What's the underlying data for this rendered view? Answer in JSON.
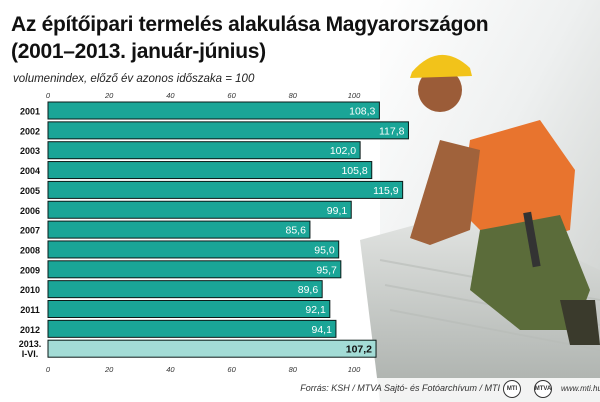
{
  "title_line1": "Az építőipari termelés alakulása Magyarországon",
  "title_line2": "(2001–2013. január-június)",
  "subtitle": "volumenindex, előző év azonos időszaka = 100",
  "colors": {
    "bar": "#1aa597",
    "bar_highlight": "#a3dcd6",
    "bar_border": "#0b1a18",
    "accent": "#1aa597"
  },
  "chart_data": {
    "type": "bar",
    "orientation": "horizontal",
    "categories": [
      "2001",
      "2002",
      "2003",
      "2004",
      "2005",
      "2006",
      "2007",
      "2008",
      "2009",
      "2010",
      "2011",
      "2012",
      "2013. I-VI."
    ],
    "values": [
      108.3,
      117.8,
      102.0,
      105.8,
      115.9,
      99.1,
      85.6,
      95.0,
      95.7,
      89.6,
      92.1,
      94.1,
      107.2
    ],
    "value_labels": [
      "108,3",
      "117,8",
      "102,0",
      "105,8",
      "115,9",
      "99,1",
      "85,6",
      "95,0",
      "95,7",
      "89,6",
      "92,1",
      "94,1",
      "107,2"
    ],
    "highlight_index": 12,
    "ticks": [
      0,
      20,
      40,
      60,
      80,
      100
    ],
    "xlim": [
      0,
      120
    ],
    "title": "Az építőipari termelés alakulása Magyarországon (2001–2013. január-június)",
    "xlabel": "",
    "ylabel": ""
  },
  "footer": {
    "source": "Forrás: KSH / MTVA Sajtó- és Fotóarchívum / MTI",
    "website": "www.mti.hu",
    "logo_left": "MTI",
    "logo_right": "MTVA"
  }
}
